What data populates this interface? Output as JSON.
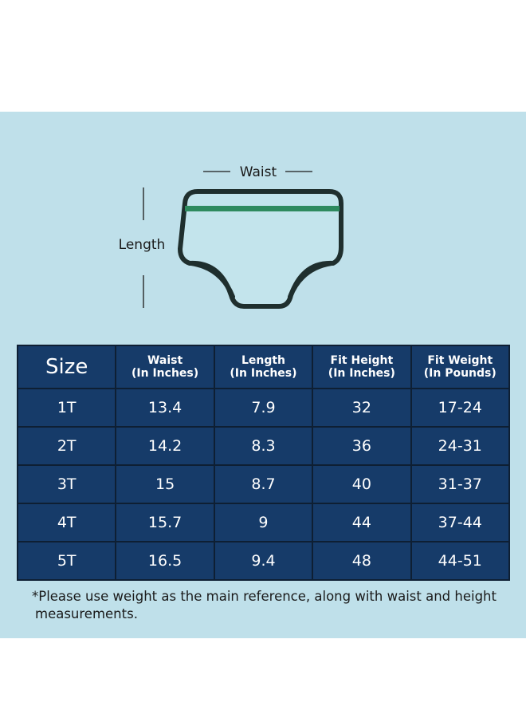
{
  "diagram": {
    "waist_label": "Waist",
    "length_label": "Length",
    "colors": {
      "outline": "#1f2f2e",
      "band": "#2e8a5e",
      "fill": "#c3e4ec"
    }
  },
  "table": {
    "headers": [
      {
        "line1": "Size",
        "line2": ""
      },
      {
        "line1": "Waist",
        "line2": "(In Inches)"
      },
      {
        "line1": "Length",
        "line2": "(In Inches)"
      },
      {
        "line1": "Fit Height",
        "line2": "(In Inches)"
      },
      {
        "line1": "Fit Weight",
        "line2": "(In Pounds)"
      }
    ],
    "rows": [
      [
        "1T",
        "13.4",
        "7.9",
        "32",
        "17-24"
      ],
      [
        "2T",
        "14.2",
        "8.3",
        "36",
        "24-31"
      ],
      [
        "3T",
        "15",
        "8.7",
        "40",
        "31-37"
      ],
      [
        "4T",
        "15.7",
        "9",
        "44",
        "37-44"
      ],
      [
        "5T",
        "16.5",
        "9.4",
        "48",
        "44-51"
      ]
    ],
    "colors": {
      "cell_bg": "#163b69",
      "border": "#0e1f33",
      "text": "#ffffff"
    }
  },
  "note": {
    "line1": "*Please use weight as the main reference, along with waist and height",
    "line2": "measurements."
  },
  "colors": {
    "panel_bg": "#bfe0ea"
  }
}
